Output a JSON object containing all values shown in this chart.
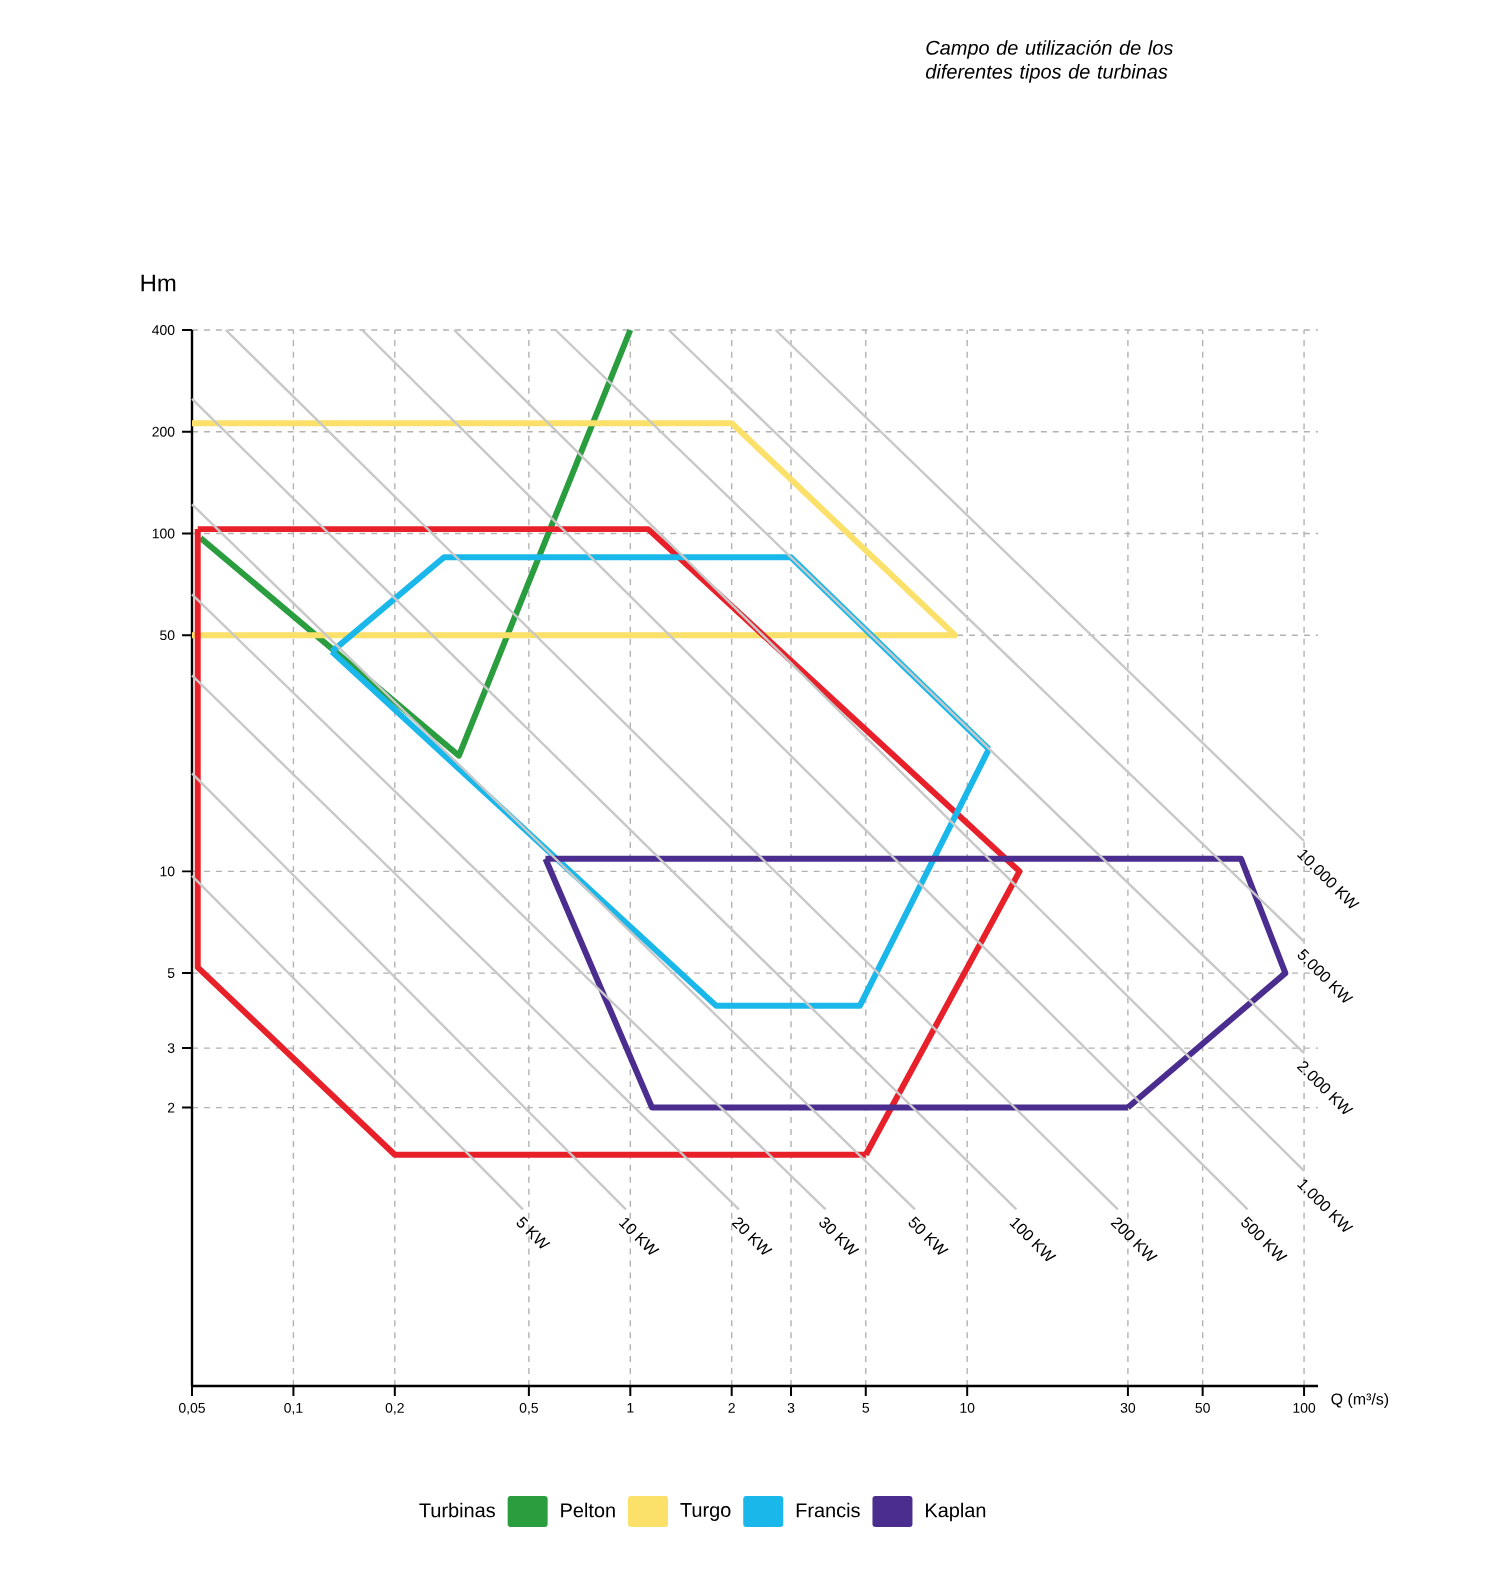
{
  "chart_data": {
    "type": "line",
    "title": "Campo de utilización de los diferentes tipos de turbinas",
    "xlabel": "Q (m³/s)",
    "ylabel": "Hm",
    "legend_title": "Turbinas",
    "log": "xy",
    "grid": true,
    "legend": "bottom",
    "xlim": [
      0.05,
      110
    ],
    "ylim": [
      0.3,
      400
    ],
    "xticks": [
      {
        "value": 0.05,
        "label": "0,05"
      },
      {
        "value": 0.1,
        "label": "0,1"
      },
      {
        "value": 0.2,
        "label": "0,2"
      },
      {
        "value": 0.5,
        "label": "0,5"
      },
      1,
      2,
      3,
      5,
      10,
      30,
      50,
      100
    ],
    "yticks": [
      2,
      3,
      5,
      10,
      50,
      100,
      200,
      400
    ],
    "series": [
      {
        "name": "Pelton",
        "color": "#2a9d3f",
        "x": [
          0.053,
          0.31,
          1
        ],
        "values": [
          97,
          22,
          400
        ]
      },
      {
        "name": "Turgo",
        "color": "#fbe06a",
        "x": [
          0.05,
          2,
          9.2,
          0.05
        ],
        "values": [
          212,
          212,
          50,
          50
        ]
      },
      {
        "color": "#e8202a",
        "x": [
          0.052,
          1.13,
          14.3,
          5,
          0.2,
          0.052,
          0.052
        ],
        "values": [
          103,
          103,
          10,
          1.45,
          1.45,
          5.2,
          103
        ]
      },
      {
        "name": "Francis",
        "color": "#1ab8ea",
        "x": [
          0.13,
          0.28,
          3,
          11.6,
          4.8,
          1.8,
          0.13
        ],
        "values": [
          44.7,
          85,
          85,
          23,
          4,
          4,
          44.7
        ]
      },
      {
        "name": "Kaplan",
        "color": "#4b2d8f",
        "x": [
          0.56,
          65,
          88,
          30,
          1.16,
          0.56
        ],
        "values": [
          10.9,
          10.9,
          5,
          2,
          2,
          10.9
        ]
      },
      {
        "type": "line",
        "name": "5 KW",
        "color": "#c8c8c8",
        "x": [
          0.05,
          0.48
        ],
        "values": [
          9.7,
          1
        ]
      },
      {
        "type": "line",
        "name": "10 KW",
        "color": "#c8c8c8",
        "x": [
          0.05,
          0.97
        ],
        "values": [
          19.5,
          1
        ]
      },
      {
        "type": "line",
        "name": "20 KW",
        "color": "#c8c8c8",
        "x": [
          0.05,
          2.1
        ],
        "values": [
          38,
          1
        ]
      },
      {
        "type": "line",
        "name": "30 KW",
        "color": "#c8c8c8",
        "x": [
          0.05,
          3.8
        ],
        "values": [
          66,
          1
        ]
      },
      {
        "type": "line",
        "name": "50 KW",
        "color": "#c8c8c8",
        "x": [
          0.05,
          7
        ],
        "values": [
          122,
          1
        ]
      },
      {
        "type": "line",
        "name": "100 KW",
        "color": "#c8c8c8",
        "x": [
          0.05,
          14
        ],
        "values": [
          250,
          1
        ]
      },
      {
        "type": "line",
        "name": "200 KW",
        "color": "#c8c8c8",
        "x": [
          0.063,
          28
        ],
        "values": [
          400,
          1
        ]
      },
      {
        "type": "line",
        "name": "500 KW",
        "color": "#c8c8c8",
        "x": [
          0.16,
          68
        ],
        "values": [
          400,
          1
        ]
      },
      {
        "type": "line",
        "name": "1.000 KW",
        "color": "#c8c8c8",
        "x": [
          0.3,
          100
        ],
        "values": [
          400,
          1.3
        ]
      },
      {
        "type": "line",
        "name": "2.000 KW",
        "color": "#c8c8c8",
        "x": [
          0.6,
          100
        ],
        "values": [
          400,
          2.9
        ]
      },
      {
        "type": "line",
        "name": "5.000 KW",
        "color": "#c8c8c8",
        "x": [
          1.3,
          100
        ],
        "values": [
          400,
          6.2
        ]
      },
      {
        "type": "line",
        "name": "10.000 KW",
        "color": "#c8c8c8",
        "x": [
          2.7,
          100
        ],
        "values": [
          400,
          12.3
        ]
      }
    ]
  }
}
